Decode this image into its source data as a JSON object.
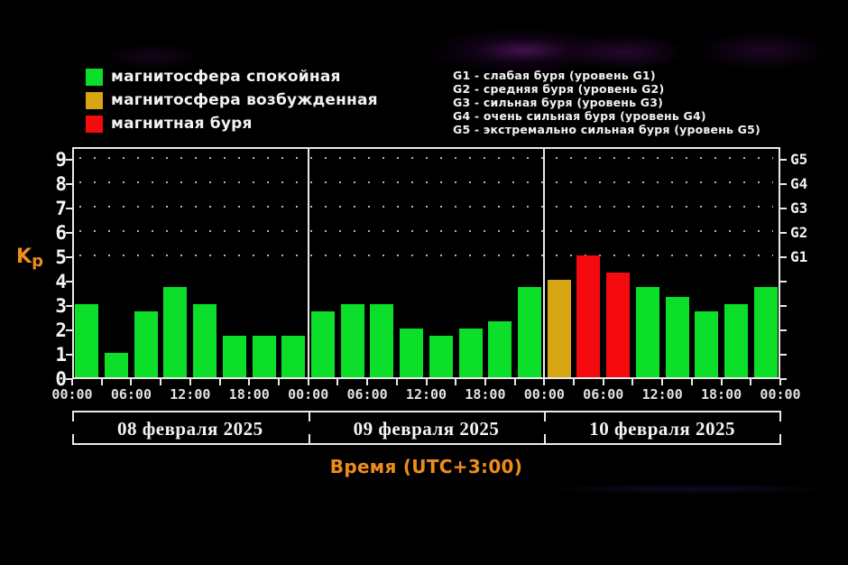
{
  "legend": {
    "items": [
      {
        "label": "магнитосфера спокойная",
        "color": "#0bdf29",
        "status": "quiet"
      },
      {
        "label": "магнитосфера возбужденная",
        "color": "#d6a511",
        "status": "excited"
      },
      {
        "label": "магнитная буря",
        "color": "#f50a0e",
        "status": "storm"
      }
    ]
  },
  "storm_legend": {
    "lines": [
      "G1 - слабая буря (уровень G1)",
      "G2 - средняя буря (уровень G2)",
      "G3 - сильная буря (уровень G3)",
      "G4 - очень сильная буря (уровень G4)",
      "G5 - экстремально сильная буря (уровень G5)"
    ]
  },
  "chart_data": {
    "type": "bar",
    "ylabel_main": "K",
    "ylabel_sub": "p",
    "xlabel": "Время (UTC+3:00)",
    "ylim": [
      0,
      9
    ],
    "y_ticks": [
      0,
      1,
      2,
      3,
      4,
      5,
      6,
      7,
      8,
      9
    ],
    "grid": "dotted horizontal lines at Kp 5..9",
    "g_levels": [
      {
        "label": "G1",
        "kp": 5
      },
      {
        "label": "G2",
        "kp": 6
      },
      {
        "label": "G3",
        "kp": 7
      },
      {
        "label": "G4",
        "kp": 8
      },
      {
        "label": "G5",
        "kp": 9
      }
    ],
    "x_tick_labels": [
      "00:00",
      "06:00",
      "12:00",
      "18:00",
      "00:00",
      "06:00",
      "12:00",
      "18:00",
      "00:00",
      "06:00",
      "12:00",
      "18:00",
      "00:00"
    ],
    "status_colors": {
      "quiet": "#0bdf29",
      "excited": "#d6a511",
      "storm": "#f50a0e"
    },
    "days": [
      {
        "date": "08 февраля 2025",
        "values": [
          3.0,
          1.0,
          2.7,
          3.7,
          3.0,
          1.7,
          1.7,
          1.7
        ],
        "status": [
          "quiet",
          "quiet",
          "quiet",
          "quiet",
          "quiet",
          "quiet",
          "quiet",
          "quiet"
        ]
      },
      {
        "date": "09 февраля 2025",
        "values": [
          2.7,
          3.0,
          3.0,
          2.0,
          1.7,
          2.0,
          2.3,
          3.7
        ],
        "status": [
          "quiet",
          "quiet",
          "quiet",
          "quiet",
          "quiet",
          "quiet",
          "quiet",
          "quiet"
        ]
      },
      {
        "date": "10 февраля 2025",
        "values": [
          4.0,
          5.0,
          4.3,
          3.7,
          3.3,
          2.7,
          3.0,
          3.7
        ],
        "status": [
          "excited",
          "storm",
          "storm",
          "quiet",
          "quiet",
          "quiet",
          "quiet",
          "quiet"
        ]
      }
    ]
  }
}
